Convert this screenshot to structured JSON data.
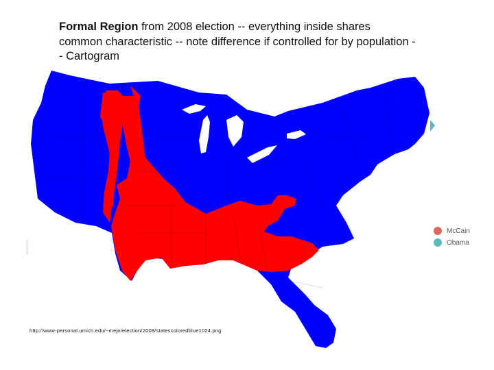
{
  "caption": {
    "bold": "Formal Region",
    "text": " from 2008 election -- everything inside shares common characteristic -- note difference if controlled for by population -- Cartogram"
  },
  "source_url": "http://www-personal.umich.edu/~mejn/election/2008/statescoloredblue1024.png",
  "legend": [
    {
      "label": "McCain",
      "color": "#d9695e"
    },
    {
      "label": "Obama",
      "color": "#5fb8bb"
    }
  ],
  "map_colors": {
    "obama_fill": "#0000ff",
    "mccain_fill": "#ff0000"
  }
}
